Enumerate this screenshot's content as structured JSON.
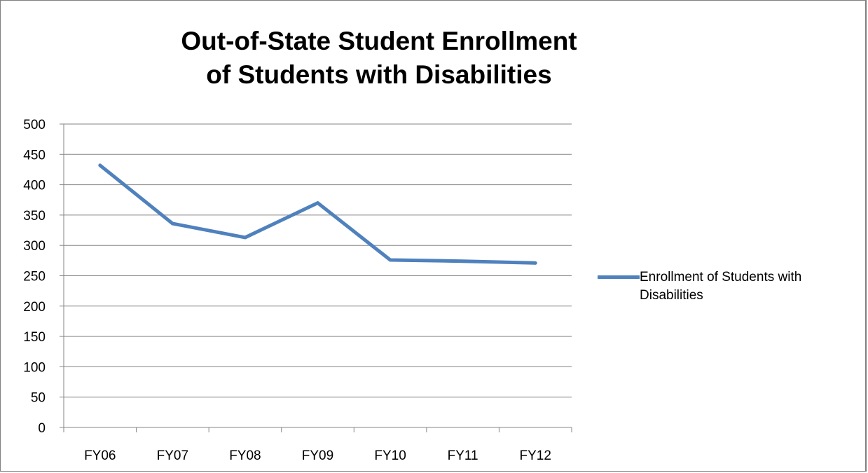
{
  "chart_data": {
    "type": "line",
    "title": "Out-of-State Student Enrollment\nof Students with Disabilities",
    "xlabel": "",
    "ylabel": "",
    "categories": [
      "FY06",
      "FY07",
      "FY08",
      "FY09",
      "FY10",
      "FY11",
      "FY12"
    ],
    "series": [
      {
        "name": "Enrollment of Students with Disabilities",
        "values": [
          432,
          336,
          313,
          370,
          276,
          274,
          271
        ],
        "color": "#4f81bd"
      }
    ],
    "ylim": [
      0,
      500
    ],
    "yticks": [
      0,
      50,
      100,
      150,
      200,
      250,
      300,
      350,
      400,
      450,
      500
    ],
    "grid": true,
    "legend_position": "right"
  }
}
